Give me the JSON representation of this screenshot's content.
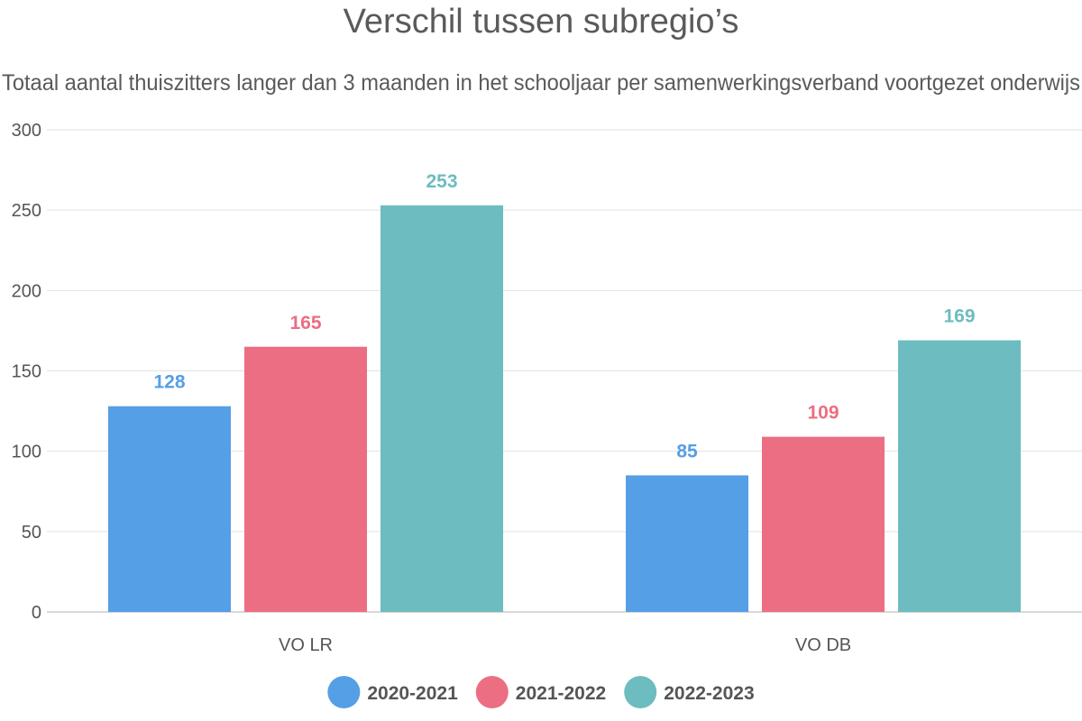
{
  "chart_data": {
    "type": "bar",
    "title": "Verschil tussen subregio’s",
    "subtitle": "Totaal aantal thuiszitters langer dan 3 maanden in het schooljaar per samenwerkingsverband voortgezet onderwijs",
    "categories": [
      "VO LR",
      "VO DB"
    ],
    "series": [
      {
        "name": "2020-2021",
        "values": [
          128,
          85
        ],
        "color": "#559fe6"
      },
      {
        "name": "2021-2022",
        "values": [
          165,
          109
        ],
        "color": "#ec6e83"
      },
      {
        "name": "2022-2023",
        "values": [
          253,
          169
        ],
        "color": "#6dbcbf"
      }
    ],
    "ylim": [
      0,
      300
    ],
    "yticks": [
      0,
      50,
      100,
      150,
      200,
      250,
      300
    ],
    "grid": true,
    "legend_position": "bottom-center",
    "data_labels": true
  }
}
